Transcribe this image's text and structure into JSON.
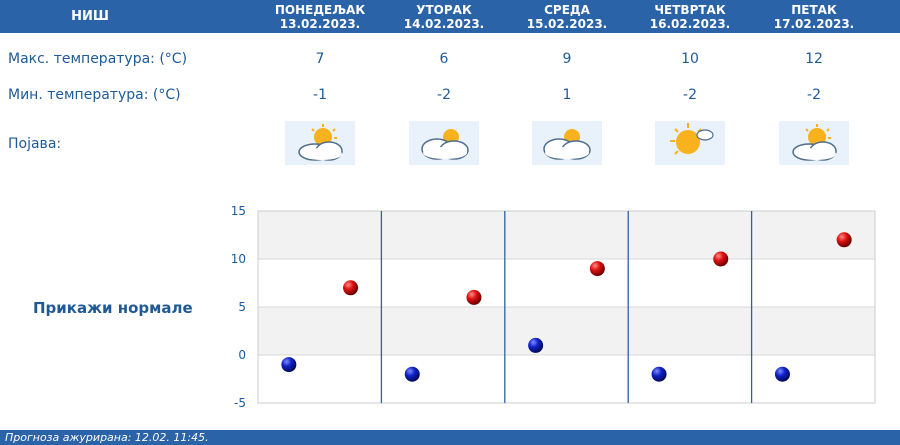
{
  "city": "НИШ",
  "days": [
    {
      "name": "ПОНЕДЕЉАК",
      "date": "13.02.2023.",
      "max": "7",
      "min": "-1",
      "icon": "partly-cloudy-icon"
    },
    {
      "name": "УТОРАК",
      "date": "14.02.2023.",
      "max": "6",
      "min": "-2",
      "icon": "cloudy-sun-icon"
    },
    {
      "name": "СРЕДА",
      "date": "15.02.2023.",
      "max": "9",
      "min": "1",
      "icon": "cloudy-sun-icon"
    },
    {
      "name": "ЧЕТВРТАК",
      "date": "16.02.2023.",
      "max": "10",
      "min": "-2",
      "icon": "mostly-sunny-icon"
    },
    {
      "name": "ПЕТАК",
      "date": "17.02.2023.",
      "max": "12",
      "min": "-2",
      "icon": "partly-cloudy-icon"
    }
  ],
  "labels": {
    "max_temp": "Макс. температура: (°C)",
    "min_temp": "Мин. температура: (°C)",
    "phenomenon": "Појава:"
  },
  "show_normals": "Прикажи нормале",
  "footer": "Прогноза ажурирана:  12.02. 11:45.",
  "colors": {
    "header": "#2a63a8",
    "max_marker": "#cc0000",
    "min_marker": "#0a1aa8",
    "text": "#1f5a96"
  },
  "chart_data": {
    "type": "scatter",
    "x": [
      "13.02.2023.",
      "14.02.2023.",
      "15.02.2023.",
      "16.02.2023.",
      "17.02.2023."
    ],
    "series": [
      {
        "values": [
          7,
          6,
          9,
          10,
          12
        ],
        "color": "#cc0000"
      },
      {
        "values": [
          -1,
          -2,
          1,
          -2,
          -2
        ],
        "color": "#0a1aa8"
      }
    ],
    "yticks": [
      "15",
      "10",
      "5",
      "0",
      "-5"
    ],
    "ylim": [
      -5,
      15
    ],
    "grid": true,
    "title": "",
    "xlabel": "",
    "ylabel": ""
  }
}
